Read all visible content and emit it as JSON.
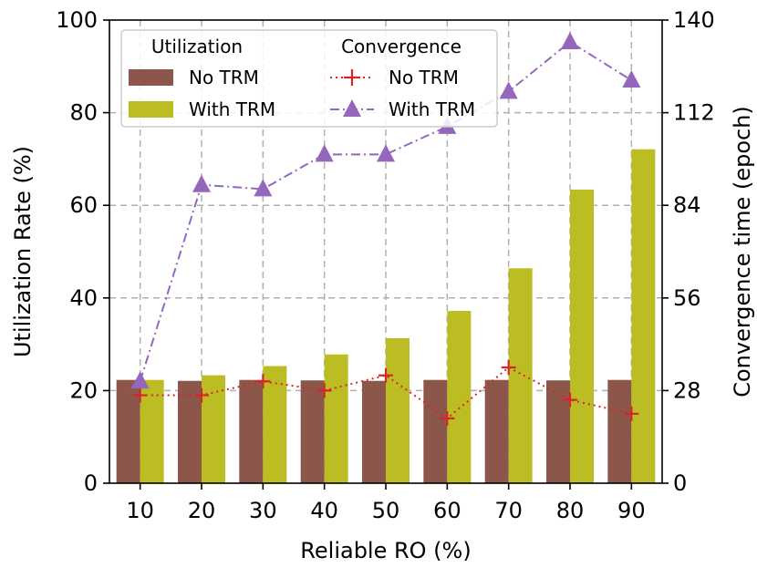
{
  "chart_data": {
    "type": "bar+line",
    "xlabel": "Reliable RO (%)",
    "ylabel_left": "Utilization Rate (%)",
    "ylabel_right": "Convergence time (epoch)",
    "categories": [
      "10",
      "20",
      "30",
      "40",
      "50",
      "60",
      "70",
      "80",
      "90"
    ],
    "ylim_left": [
      0,
      100
    ],
    "yticks_left": [
      "0",
      "20",
      "40",
      "60",
      "80",
      "100"
    ],
    "ylim_right": [
      0,
      140
    ],
    "yticks_right": [
      "0",
      "28",
      "56",
      "84",
      "112",
      "140"
    ],
    "grid": true,
    "bar_series": [
      {
        "name": "No TRM",
        "color": "#8c564b",
        "values": [
          22.3,
          22.1,
          22.3,
          22.2,
          22.1,
          22.3,
          22.3,
          22.2,
          22.3
        ]
      },
      {
        "name": "With TRM",
        "color": "#bcbd22",
        "values": [
          22.3,
          23.3,
          25.3,
          27.8,
          31.3,
          37.2,
          46.4,
          63.4,
          72.1
        ]
      }
    ],
    "line_series": [
      {
        "name": "No TRM",
        "color": "#d62728",
        "marker": "plus",
        "style": "dotted",
        "values": [
          26.6,
          26.6,
          30.8,
          28.0,
          32.6,
          19.6,
          35.0,
          25.2,
          21.0
        ]
      },
      {
        "name": "With TRM",
        "color": "#9467bd",
        "marker": "triangle",
        "style": "dashdot",
        "values": [
          30.8,
          90.2,
          88.9,
          99.4,
          99.4,
          107.8,
          118.4,
          133.4,
          121.8
        ]
      }
    ],
    "legend": {
      "placement": "top-left",
      "col1_title": "Utilization",
      "col2_title": "Convergence",
      "bar_labels": [
        "No TRM",
        "With TRM"
      ],
      "line_labels": [
        "No TRM",
        "With TRM"
      ]
    }
  }
}
